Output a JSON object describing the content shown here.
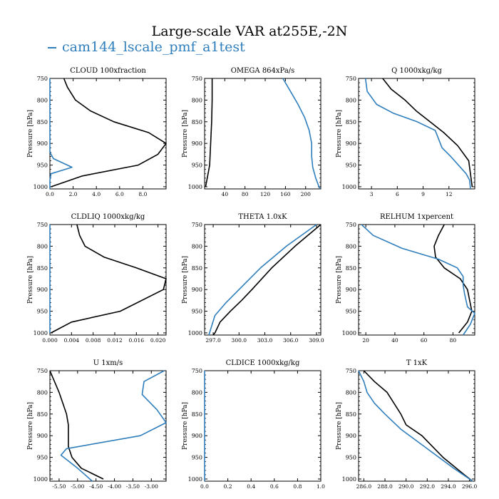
{
  "title": "Large-scale VAR at255E,-2N",
  "legend": {
    "label": "cam144_lscale_pmf_a1test",
    "color": "#2f7ebc"
  },
  "colors": {
    "model": "#2f7ebc",
    "obs": "#000000"
  },
  "ylabel": "Pressure [hPa]",
  "yticks": [
    "750",
    "800",
    "850",
    "900",
    "950",
    "1000"
  ],
  "chart_data": [
    {
      "type": "line",
      "title": "CLOUD  100xfraction",
      "xlim": [
        0,
        10
      ],
      "ylim": [
        1005,
        750
      ],
      "xticks": [
        0,
        2,
        4,
        6,
        8
      ],
      "xticklabels": [
        "0.0",
        "2.0",
        "4.0",
        "6.0",
        "8.0"
      ],
      "series": [
        {
          "role": "obs",
          "x": [
            1.2,
            1.5,
            2.2,
            3.5,
            5.5,
            8.5,
            10.0,
            9.3,
            7.6,
            2.8,
            0.1
          ],
          "y": [
            750,
            770,
            800,
            825,
            850,
            875,
            900,
            925,
            950,
            975,
            1000
          ]
        },
        {
          "role": "model",
          "x": [
            0,
            0,
            0,
            0.3,
            1.9,
            0.1,
            0,
            0
          ],
          "y": [
            750,
            850,
            920,
            935,
            955,
            970,
            985,
            1005
          ]
        }
      ]
    },
    {
      "type": "line",
      "title": "OMEGA  864xPa/s",
      "xlim": [
        0,
        230
      ],
      "ylim": [
        1005,
        750
      ],
      "xticks": [
        40,
        80,
        120,
        160,
        200
      ],
      "xticklabels": [
        "40",
        "80",
        "120",
        "160",
        "200"
      ],
      "series": [
        {
          "role": "obs",
          "x": [
            15,
            15,
            14,
            13,
            12,
            10,
            6,
            2
          ],
          "y": [
            750,
            800,
            850,
            875,
            900,
            950,
            975,
            1000
          ]
        },
        {
          "role": "model",
          "x": [
            155,
            170,
            185,
            198,
            207,
            212,
            212,
            214,
            220,
            228
          ],
          "y": [
            750,
            780,
            810,
            840,
            870,
            900,
            930,
            955,
            980,
            1005
          ]
        }
      ]
    },
    {
      "type": "line",
      "title": "Q  1000xkg/kg",
      "xlim": [
        1.5,
        15
      ],
      "ylim": [
        1005,
        750
      ],
      "xticks": [
        3,
        6,
        9,
        12
      ],
      "xticklabels": [
        "3",
        "6",
        "9",
        "12"
      ],
      "series": [
        {
          "role": "obs",
          "x": [
            4.3,
            5.3,
            6.9,
            8.2,
            9.8,
            11.4,
            13.0,
            14.3,
            14.7
          ],
          "y": [
            750,
            775,
            800,
            825,
            850,
            875,
            905,
            940,
            1000
          ]
        },
        {
          "role": "model",
          "x": [
            2.3,
            2.5,
            3.6,
            5.5,
            8.3,
            10.4,
            10.8,
            11.2,
            12.2,
            14.0,
            14.4,
            14.5
          ],
          "y": [
            750,
            780,
            810,
            830,
            850,
            870,
            890,
            910,
            930,
            970,
            985,
            1005
          ]
        }
      ]
    },
    {
      "type": "line",
      "title": "CLDLIQ  1000xkg/kg",
      "xlim": [
        0,
        0.0215
      ],
      "ylim": [
        1005,
        750
      ],
      "xticks": [
        0,
        0.004,
        0.008,
        0.012,
        0.016,
        0.02
      ],
      "xticklabels": [
        "0.000",
        "0.004",
        "0.008",
        "0.012",
        "0.016",
        "0.020"
      ],
      "series": [
        {
          "role": "obs",
          "x": [
            0.005,
            0.0055,
            0.0065,
            0.01,
            0.016,
            0.0215,
            0.021,
            0.013,
            0.004,
            0.0002
          ],
          "y": [
            750,
            775,
            800,
            825,
            850,
            875,
            900,
            950,
            975,
            1000
          ]
        },
        {
          "role": "model",
          "x": [
            0,
            0,
            0,
            0
          ],
          "y": [
            750,
            900,
            950,
            1000
          ]
        }
      ]
    },
    {
      "type": "line",
      "title": "THETA  1.0xK",
      "xlim": [
        296,
        309.5
      ],
      "ylim": [
        1005,
        750
      ],
      "xticks": [
        297,
        300,
        303,
        306,
        309
      ],
      "xticklabels": [
        "297.0",
        "300.0",
        "303.0",
        "306.0",
        "309.0"
      ],
      "series": [
        {
          "role": "obs",
          "x": [
            309.5,
            306.5,
            303.8,
            301.5,
            300.3,
            299.0,
            297.8,
            297.2,
            297.0
          ],
          "y": [
            750,
            800,
            850,
            900,
            925,
            950,
            975,
            1000,
            1005
          ]
        },
        {
          "role": "model",
          "x": [
            309.0,
            305.5,
            302.5,
            300.0,
            298.5,
            297.2,
            296.5
          ],
          "y": [
            750,
            800,
            850,
            900,
            930,
            960,
            1005
          ]
        }
      ]
    },
    {
      "type": "line",
      "title": "RELHUM  1xpercent",
      "xlim": [
        15,
        95
      ],
      "ylim": [
        1005,
        750
      ],
      "xticks": [
        20,
        40,
        60,
        80
      ],
      "xticklabels": [
        "20",
        "40",
        "60",
        "80"
      ],
      "series": [
        {
          "role": "obs",
          "x": [
            74,
            70,
            67,
            68,
            74,
            85,
            90,
            93,
            90,
            84
          ],
          "y": [
            750,
            775,
            800,
            825,
            850,
            875,
            900,
            950,
            975,
            1000
          ]
        },
        {
          "role": "model",
          "x": [
            17,
            25,
            45,
            70,
            83,
            87,
            87,
            88,
            90,
            95,
            92,
            87
          ],
          "y": [
            750,
            775,
            805,
            830,
            850,
            870,
            890,
            910,
            940,
            955,
            980,
            1005
          ]
        }
      ]
    },
    {
      "type": "line",
      "title": "U  1xm/s",
      "xlim": [
        -5.75,
        -2.6
      ],
      "ylim": [
        1005,
        750
      ],
      "xticks": [
        -5.5,
        -5.0,
        -4.5,
        -4.0,
        -3.5,
        -3.0
      ],
      "xticklabels": [
        "-5.50",
        "-5.00",
        "-4.50",
        "-4.00",
        "-3.50",
        "-3.00"
      ],
      "series": [
        {
          "role": "obs",
          "x": [
            -5.75,
            -5.5,
            -5.3,
            -5.25,
            -5.25,
            -5.25,
            -5.15,
            -4.9,
            -4.3
          ],
          "y": [
            750,
            800,
            850,
            875,
            900,
            925,
            950,
            975,
            1000
          ]
        },
        {
          "role": "model",
          "x": [
            -2.65,
            -3.2,
            -3.25,
            -2.85,
            -2.6,
            -3.3,
            -5.3,
            -5.45,
            -5.0,
            -4.6
          ],
          "y": [
            750,
            775,
            805,
            840,
            870,
            900,
            930,
            945,
            975,
            1005
          ]
        }
      ]
    },
    {
      "type": "line",
      "title": "CLDICE  1000xkg/kg",
      "xlim": [
        0,
        1.0
      ],
      "ylim": [
        1005,
        750
      ],
      "xticks": [
        0,
        0.2,
        0.4,
        0.6,
        0.8,
        1.0
      ],
      "xticklabels": [
        "0.0",
        "0.2",
        "0.4",
        "0.6",
        "0.8",
        "1.0"
      ],
      "series": [
        {
          "role": "model",
          "x": [
            0,
            0
          ],
          "y": [
            750,
            1005
          ]
        }
      ]
    },
    {
      "type": "line",
      "title": "T  1xK",
      "xlim": [
        285.5,
        296.5
      ],
      "ylim": [
        1005,
        750
      ],
      "xticks": [
        286,
        288,
        290,
        292,
        294,
        296
      ],
      "xticklabels": [
        "286.0",
        "288.0",
        "290.0",
        "292.0",
        "294.0",
        "296.0"
      ],
      "series": [
        {
          "role": "obs",
          "x": [
            286.0,
            287.0,
            288.2,
            289.5,
            290.0,
            291.5,
            293.5,
            295.5,
            296.3
          ],
          "y": [
            750,
            775,
            800,
            850,
            875,
            900,
            950,
            990,
            1005
          ]
        },
        {
          "role": "model",
          "x": [
            285.5,
            286.0,
            286.3,
            287.0,
            288.0,
            289.5,
            292.0,
            294.5,
            296.3
          ],
          "y": [
            750,
            775,
            800,
            825,
            850,
            885,
            930,
            975,
            1005
          ]
        }
      ]
    }
  ]
}
